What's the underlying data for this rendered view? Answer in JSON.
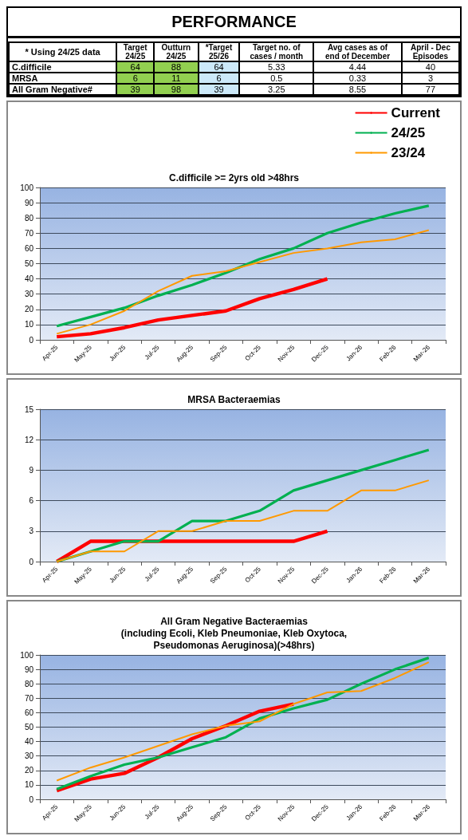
{
  "chart_data": [
    {
      "type": "other",
      "title": "PERFORMANCE",
      "annotations": [
        "* Using 24/25 data"
      ],
      "categories": [
        "Target\n24/25",
        "Outturn\n24/25",
        "*Target\n25/26",
        "Target no. of\ncases / month",
        "Avg cases as of\nend of December",
        "April - Dec\nEpisodes"
      ],
      "y_categories": [
        "C.difficile",
        "MRSA",
        "All Gram Negative#"
      ],
      "colors": [
        "#92d050",
        "#92d050",
        "#cce9f9",
        "#ffffff",
        "#ffffff",
        "#ffffff"
      ],
      "cell_labels": [
        [
          "64",
          "88",
          "64",
          "5.33",
          "4.44",
          "40"
        ],
        [
          "6",
          "11",
          "6",
          "0.5",
          "0.33",
          "3"
        ],
        [
          "39",
          "98",
          "39",
          "3.25",
          "8.55",
          "77"
        ]
      ]
    },
    {
      "type": "line",
      "title": "C.difficile >= 2yrs old >48hrs",
      "legend": "top right",
      "grid": "y",
      "categories": [
        "Apr-25",
        "May-25",
        "Jun-25",
        "Jul-25",
        "Aug-25",
        "Sep-25",
        "Oct-25",
        "Nov-25",
        "Dec-25",
        "Jan-26",
        "Feb-26",
        "Mar-26"
      ],
      "ylim": [
        0,
        100
      ],
      "yticks": [
        0,
        10,
        20,
        30,
        40,
        50,
        60,
        70,
        80,
        90,
        100
      ],
      "series": [
        {
          "name": "Current",
          "color": "#ff0000",
          "values": [
            2,
            4,
            8,
            13,
            16,
            19,
            27,
            33,
            40,
            null,
            null,
            null
          ]
        },
        {
          "name": "24/25",
          "color": "#00b050",
          "values": [
            9,
            15,
            21,
            29,
            36,
            44,
            53,
            60,
            70,
            77,
            83,
            88
          ]
        },
        {
          "name": "23/24",
          "color": "#ff9900",
          "values": [
            4,
            10,
            19,
            32,
            42,
            45,
            51,
            57,
            60,
            64,
            66,
            72
          ]
        }
      ]
    },
    {
      "type": "line",
      "title": "MRSA Bacteraemias",
      "legend": false,
      "grid": "y",
      "categories": [
        "Apr-25",
        "May-25",
        "Jun-25",
        "Jul-25",
        "Aug-25",
        "Sep-25",
        "Oct-25",
        "Nov-25",
        "Dec-25",
        "Jan-26",
        "Feb-26",
        "Mar-26"
      ],
      "ylim": [
        0,
        15
      ],
      "yticks": [
        0,
        3,
        6,
        9,
        12,
        15
      ],
      "series": [
        {
          "color": "#ff0000",
          "values": [
            0,
            2,
            2,
            2,
            2,
            2,
            2,
            2,
            3,
            null,
            null,
            null
          ]
        },
        {
          "color": "#00b050",
          "values": [
            0,
            1,
            2,
            2,
            4,
            4,
            5,
            7,
            8,
            9,
            10,
            11
          ]
        },
        {
          "color": "#ff9900",
          "values": [
            0,
            1,
            1,
            3,
            3,
            4,
            4,
            5,
            5,
            7,
            7,
            8
          ]
        }
      ]
    },
    {
      "type": "line",
      "title": "All Gram Negative Bacteraemias\n(including Ecoli, Kleb Pneumoniae, Kleb Oxytoca,\nPseudomonas Aeruginosa)(>48hrs)",
      "legend": false,
      "grid": "y",
      "categories": [
        "Apr-25",
        "May-25",
        "Jun-25",
        "Jul-25",
        "Aug-25",
        "Sep-25",
        "Oct-25",
        "Nov-25",
        "Dec-25",
        "Jan-26",
        "Feb-26",
        "Mar-26"
      ],
      "ylim": [
        0,
        100
      ],
      "yticks": [
        0,
        10,
        20,
        30,
        40,
        50,
        60,
        70,
        80,
        90,
        100
      ],
      "series": [
        {
          "color": "#ff0000",
          "values": [
            6,
            14,
            18,
            29,
            42,
            51,
            61,
            66,
            null,
            null,
            null,
            null
          ]
        },
        {
          "color": "#00b050",
          "values": [
            7,
            16,
            24,
            29,
            36,
            43,
            56,
            63,
            69,
            80,
            90,
            98
          ]
        },
        {
          "color": "#ff9900",
          "values": [
            13,
            22,
            29,
            37,
            45,
            51,
            54,
            66,
            74,
            75,
            84,
            95
          ]
        }
      ]
    }
  ]
}
